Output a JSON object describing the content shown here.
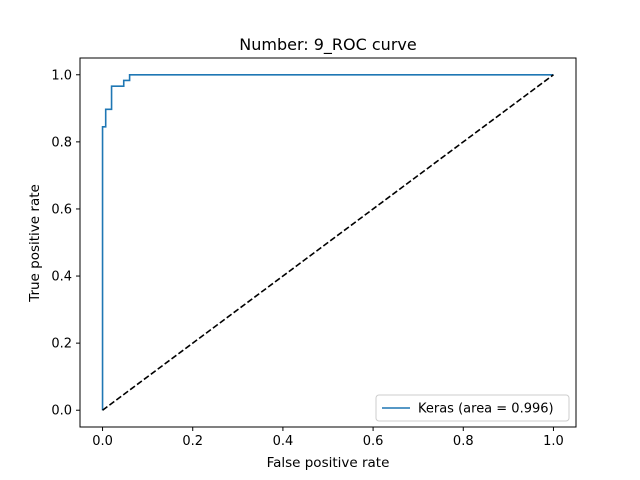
{
  "chart_data": {
    "type": "line",
    "title": "Number:  9_ROC curve",
    "xlabel": "False positive rate",
    "ylabel": "True positive rate",
    "xlim": [
      -0.05,
      1.05
    ],
    "ylim": [
      -0.05,
      1.05
    ],
    "xticks": [
      0.0,
      0.2,
      0.4,
      0.6,
      0.8,
      1.0
    ],
    "yticks": [
      0.0,
      0.2,
      0.4,
      0.6,
      0.8,
      1.0
    ],
    "xtick_labels": [
      "0.0",
      "0.2",
      "0.4",
      "0.6",
      "0.8",
      "1.0"
    ],
    "ytick_labels": [
      "0.0",
      "0.2",
      "0.4",
      "0.6",
      "0.8",
      "1.0"
    ],
    "grid": false,
    "legend_position": "lower right",
    "series": [
      {
        "name": "Keras (area = 0.996)",
        "style": "solid",
        "color": "#1f77b4",
        "x": [
          0.0,
          0.0,
          0.007,
          0.007,
          0.02,
          0.02,
          0.047,
          0.047,
          0.06,
          0.06,
          1.0
        ],
        "y": [
          0.0,
          0.845,
          0.845,
          0.897,
          0.897,
          0.966,
          0.966,
          0.983,
          0.983,
          1.0,
          1.0
        ]
      },
      {
        "style": "dashed",
        "color": "#000000",
        "x": [
          0.0,
          1.0
        ],
        "y": [
          0.0,
          1.0
        ]
      }
    ]
  }
}
